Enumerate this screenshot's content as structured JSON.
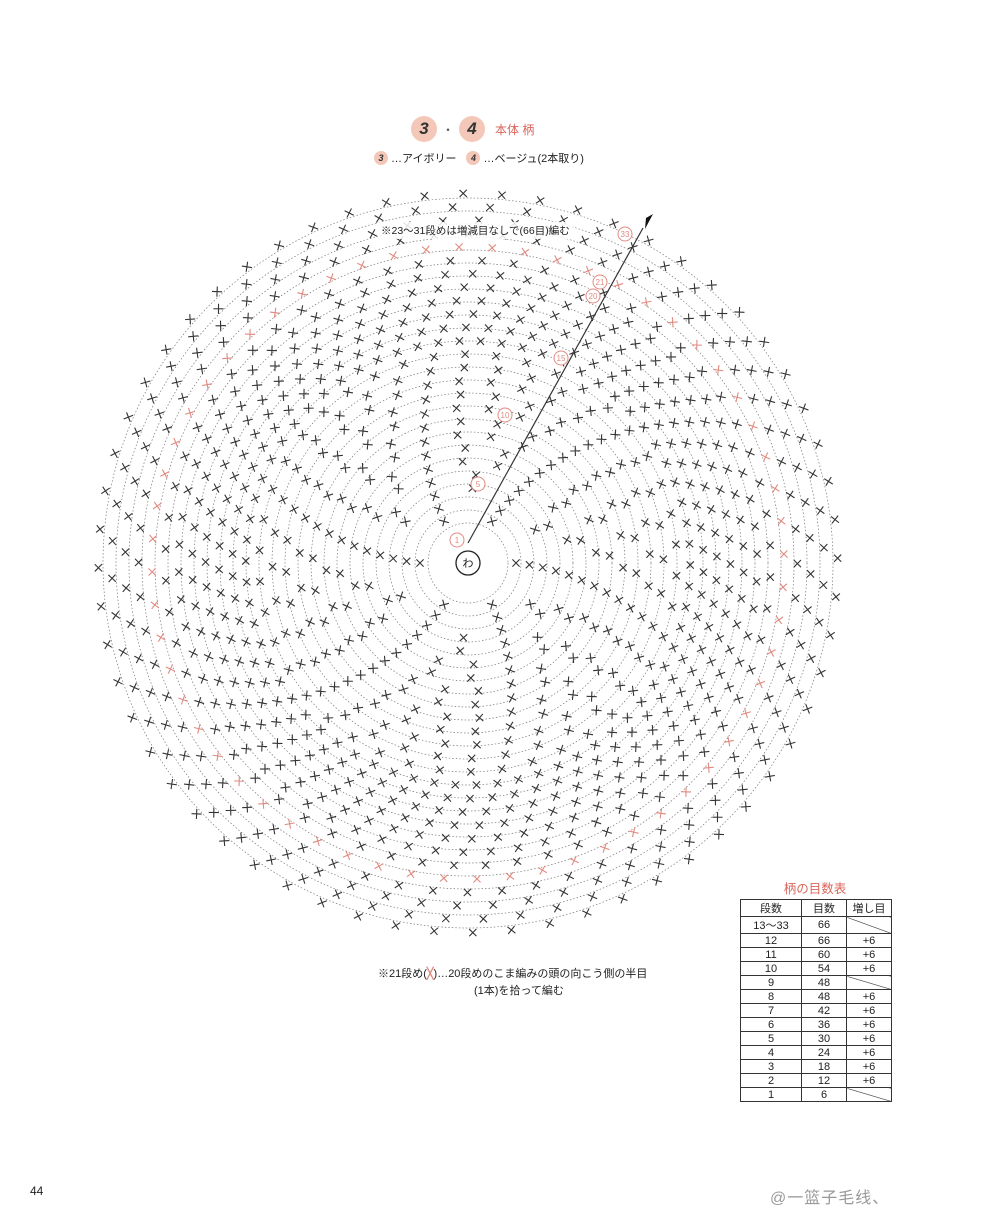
{
  "header": {
    "badge_a": "3",
    "separator": "・",
    "badge_b": "4",
    "title": "本体 柄"
  },
  "legend": {
    "item1_num": "3",
    "item1_text": "…アイボリー",
    "item2_num": "4",
    "item2_text": "…ベージュ(2本取り)"
  },
  "diagram": {
    "note_top": "※23～31段めは増減目なしで(66目)編む",
    "center_label": "わ",
    "round_labels": [
      "33",
      "21",
      "20",
      "15",
      "10",
      "5",
      "1"
    ],
    "accent_color": "#e08a80"
  },
  "note_bottom": {
    "line1_prefix": "※21段め(",
    "line1_mark": "╳",
    "line1_suffix": ")…20段めのこま編みの頭の向こう側の半目",
    "line2": "(1本)を拾って編む"
  },
  "stitch_table": {
    "title": "柄の目数表",
    "headers": [
      "段数",
      "目数",
      "増し目"
    ],
    "rows": [
      [
        "13～33",
        "66",
        ""
      ],
      [
        "12",
        "66",
        "+6"
      ],
      [
        "11",
        "60",
        "+6"
      ],
      [
        "10",
        "54",
        "+6"
      ],
      [
        "9",
        "48",
        ""
      ],
      [
        "8",
        "48",
        "+6"
      ],
      [
        "7",
        "42",
        "+6"
      ],
      [
        "6",
        "36",
        "+6"
      ],
      [
        "5",
        "30",
        "+6"
      ],
      [
        "4",
        "24",
        "+6"
      ],
      [
        "3",
        "18",
        "+6"
      ],
      [
        "2",
        "12",
        "+6"
      ],
      [
        "1",
        "6",
        ""
      ]
    ]
  },
  "page_number": "44",
  "watermark": "@一篮子毛线、"
}
